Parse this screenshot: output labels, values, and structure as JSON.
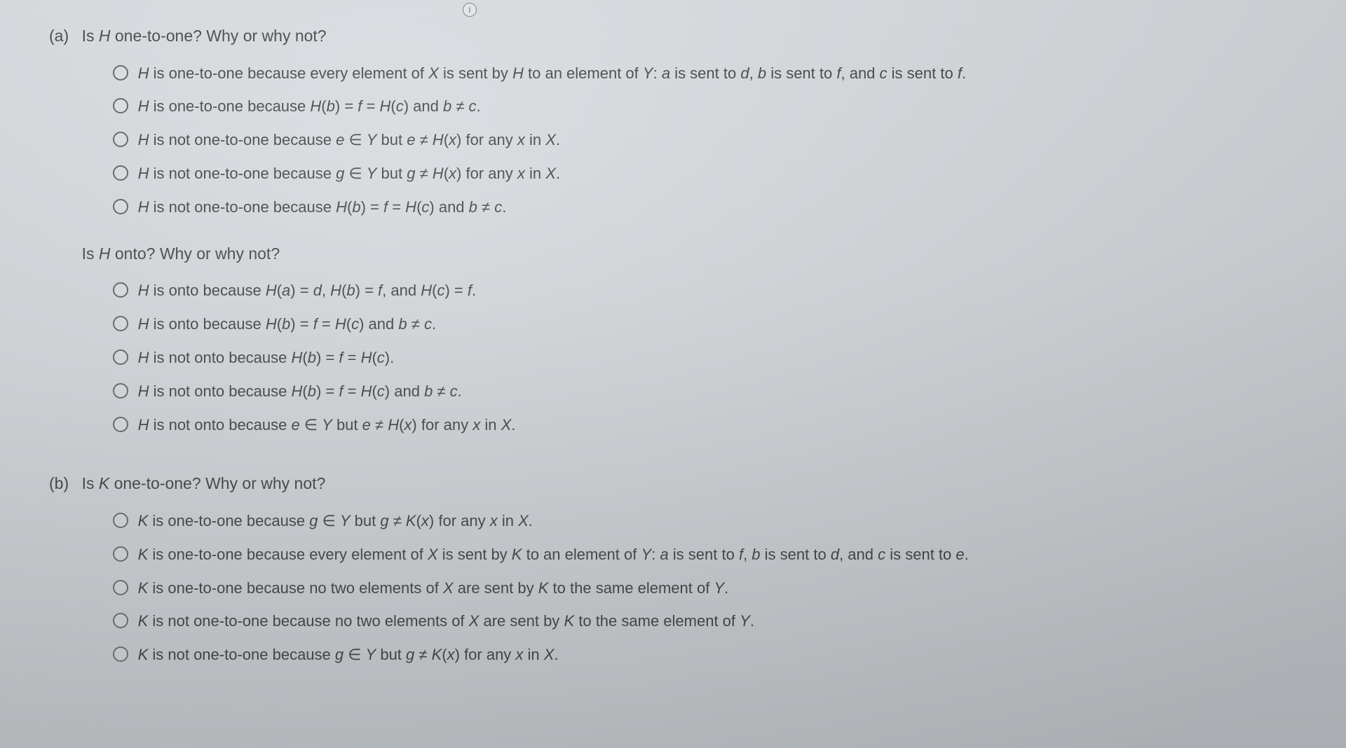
{
  "info_icon_glyph": "i",
  "parts": {
    "a": {
      "label": "(a)",
      "q1": {
        "prefix": "Is ",
        "var": "H",
        "suffix": " one-to-one? Why or why not?",
        "options": [
          "H is one-to-one because every element of X is sent by H to an element of Y: a is sent to d, b is sent to f, and c is sent to f.",
          "H is one-to-one because H(b) = f = H(c) and b ≠ c.",
          "H is not one-to-one because e ∈ Y but e ≠ H(x) for any x in X.",
          "H is not one-to-one because g ∈ Y but g ≠ H(x) for any x in X.",
          "H is not one-to-one because H(b) = f = H(c) and b ≠ c."
        ]
      },
      "q2": {
        "prefix": "Is ",
        "var": "H",
        "suffix": " onto? Why or why not?",
        "options": [
          "H is onto because H(a) = d, H(b) = f, and H(c) = f.",
          "H is onto because H(b) = f = H(c) and b ≠ c.",
          "H is not onto because H(b) = f = H(c).",
          "H is not onto because H(b) = f = H(c) and b ≠ c.",
          "H is not onto because e ∈ Y but e ≠ H(x) for any x in X."
        ]
      }
    },
    "b": {
      "label": "(b)",
      "q1": {
        "prefix": "Is ",
        "var": "K",
        "suffix": " one-to-one? Why or why not?",
        "options": [
          "K is one-to-one because g ∈ Y but g ≠ K(x) for any x in X.",
          "K is one-to-one because every element of X is sent by K to an element of Y: a is sent to f, b is sent to d, and c is sent to e.",
          "K is one-to-one because no two elements of X are sent by K to the same element of Y.",
          "K is not one-to-one because no two elements of X are sent by K to the same element of Y.",
          "K is not one-to-one because g ∈ Y but g ≠ K(x) for any x in X."
        ]
      }
    }
  },
  "italic_vars": [
    "H",
    "K",
    "X",
    "Y",
    "a",
    "b",
    "c",
    "d",
    "e",
    "f",
    "g",
    "x"
  ]
}
